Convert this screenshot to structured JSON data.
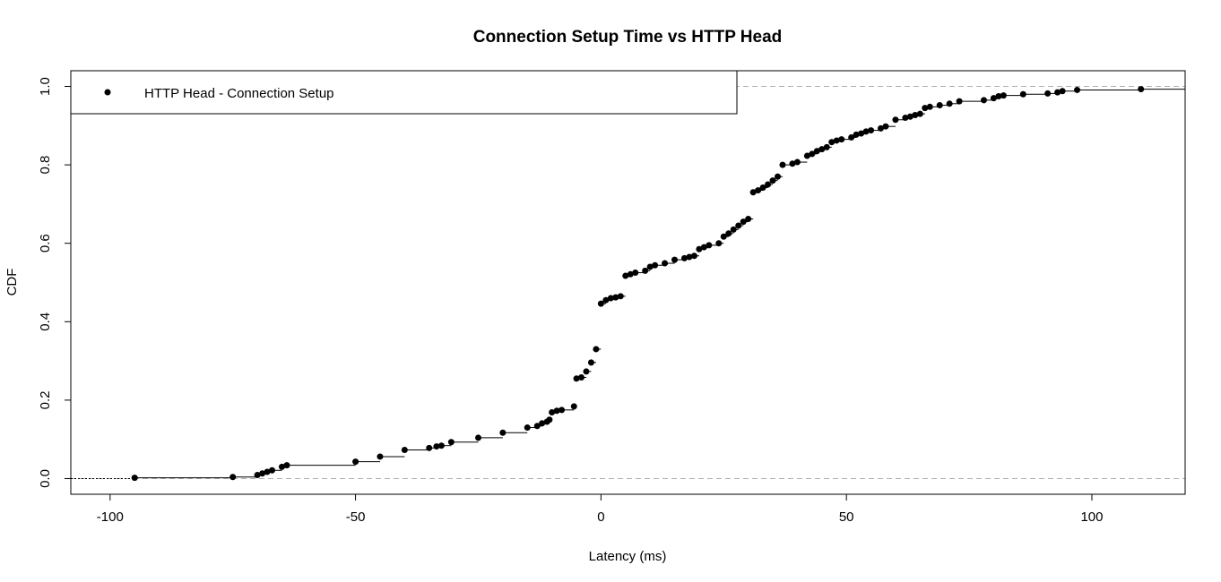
{
  "chart_data": {
    "type": "scatter",
    "title": "Connection Setup Time vs HTTP Head",
    "xlabel": "Latency (ms)",
    "ylabel": "CDF",
    "xlim": [
      -108,
      119
    ],
    "ylim": [
      -0.04,
      1.04
    ],
    "x_ticks": [
      -100,
      -50,
      0,
      50,
      100
    ],
    "x_tick_labels": [
      "-100",
      "-50",
      "0",
      "50",
      "100"
    ],
    "y_ticks": [
      0.0,
      0.2,
      0.4,
      0.6,
      0.8,
      1.0
    ],
    "y_tick_labels": [
      "0.0",
      "0.2",
      "0.4",
      "0.6",
      "0.8",
      "1.0"
    ],
    "reference_lines": [
      0,
      1
    ],
    "legend": {
      "position": "top-left",
      "entries": [
        "HTTP Head - Connection Setup"
      ]
    },
    "series": [
      {
        "name": "HTTP Head - Connection Setup",
        "color": "#000000",
        "marker": "filled-circle",
        "render": "ecdf-step",
        "points": [
          [
            -95,
            0.002
          ],
          [
            -75,
            0.004
          ],
          [
            -70,
            0.009
          ],
          [
            -69,
            0.013
          ],
          [
            -68,
            0.017
          ],
          [
            -67,
            0.021
          ],
          [
            -65,
            0.03
          ],
          [
            -64,
            0.034
          ],
          [
            -50,
            0.043
          ],
          [
            -45,
            0.056
          ],
          [
            -40,
            0.073
          ],
          [
            -35,
            0.078
          ],
          [
            -33.5,
            0.082
          ],
          [
            -32.5,
            0.084
          ],
          [
            -30.5,
            0.093
          ],
          [
            -25,
            0.104
          ],
          [
            -20,
            0.117
          ],
          [
            -15,
            0.13
          ],
          [
            -13,
            0.134
          ],
          [
            -12,
            0.141
          ],
          [
            -11,
            0.145
          ],
          [
            -10.5,
            0.15
          ],
          [
            -10,
            0.169
          ],
          [
            -9,
            0.173
          ],
          [
            -8,
            0.175
          ],
          [
            -5.5,
            0.184
          ],
          [
            -5,
            0.255
          ],
          [
            -4,
            0.258
          ],
          [
            -3,
            0.273
          ],
          [
            -2,
            0.296
          ],
          [
            -1,
            0.33
          ],
          [
            0,
            0.446
          ],
          [
            1,
            0.455
          ],
          [
            2,
            0.46
          ],
          [
            3,
            0.462
          ],
          [
            4,
            0.465
          ],
          [
            5,
            0.517
          ],
          [
            6,
            0.521
          ],
          [
            7,
            0.525
          ],
          [
            9,
            0.53
          ],
          [
            10,
            0.54
          ],
          [
            11,
            0.544
          ],
          [
            13,
            0.549
          ],
          [
            15,
            0.558
          ],
          [
            17,
            0.562
          ],
          [
            18,
            0.565
          ],
          [
            19,
            0.568
          ],
          [
            20,
            0.585
          ],
          [
            21,
            0.59
          ],
          [
            22,
            0.595
          ],
          [
            24,
            0.6
          ],
          [
            25,
            0.617
          ],
          [
            26,
            0.625
          ],
          [
            27,
            0.635
          ],
          [
            28,
            0.645
          ],
          [
            29,
            0.655
          ],
          [
            30,
            0.662
          ],
          [
            31,
            0.73
          ],
          [
            32,
            0.735
          ],
          [
            33,
            0.742
          ],
          [
            34,
            0.75
          ],
          [
            35,
            0.76
          ],
          [
            36,
            0.77
          ],
          [
            37,
            0.8
          ],
          [
            39,
            0.803
          ],
          [
            40,
            0.807
          ],
          [
            42,
            0.823
          ],
          [
            43,
            0.828
          ],
          [
            44,
            0.835
          ],
          [
            45,
            0.84
          ],
          [
            46,
            0.845
          ],
          [
            47,
            0.858
          ],
          [
            48,
            0.862
          ],
          [
            49,
            0.865
          ],
          [
            51,
            0.87
          ],
          [
            52,
            0.877
          ],
          [
            53,
            0.88
          ],
          [
            54,
            0.885
          ],
          [
            55,
            0.888
          ],
          [
            57,
            0.893
          ],
          [
            58,
            0.898
          ],
          [
            60,
            0.915
          ],
          [
            62,
            0.92
          ],
          [
            63,
            0.923
          ],
          [
            64,
            0.927
          ],
          [
            65,
            0.93
          ],
          [
            66,
            0.945
          ],
          [
            67,
            0.948
          ],
          [
            69,
            0.952
          ],
          [
            71,
            0.956
          ],
          [
            73,
            0.962
          ],
          [
            78,
            0.965
          ],
          [
            80,
            0.97
          ],
          [
            81,
            0.975
          ],
          [
            82,
            0.977
          ],
          [
            86,
            0.98
          ],
          [
            91,
            0.982
          ],
          [
            93,
            0.985
          ],
          [
            94,
            0.988
          ],
          [
            97,
            0.991
          ],
          [
            110,
            0.993
          ]
        ]
      }
    ]
  }
}
